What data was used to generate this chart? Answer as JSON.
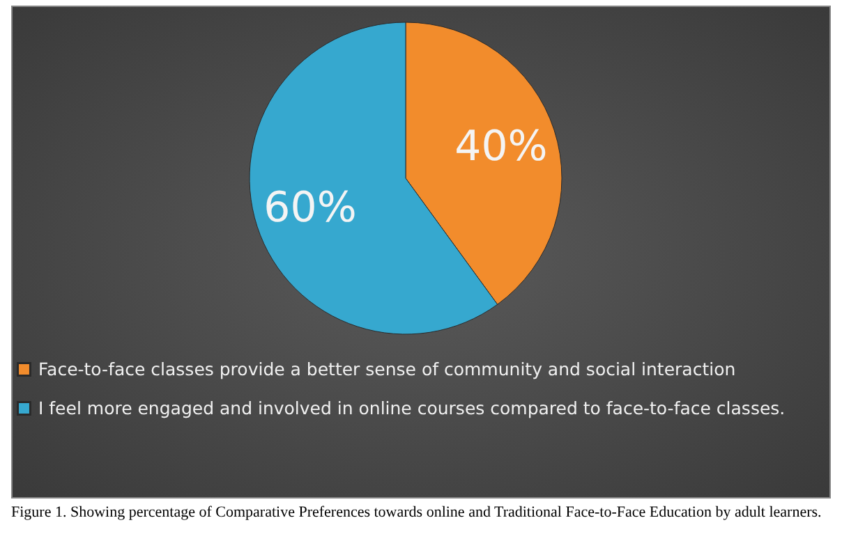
{
  "chart_data": {
    "type": "pie",
    "categories": [
      "Face-to-face classes provide a better sense of community and social interaction",
      "I feel more engaged and involved in online courses compared to face-to-face classes."
    ],
    "values": [
      40,
      60
    ],
    "colors": [
      "#f28c2c",
      "#36a8cf"
    ],
    "value_labels": [
      "40%",
      "60%"
    ],
    "legend": "bottom",
    "annotations": [
      "Figure 1. Showing percentage of Comparative Preferences towards online and Traditional Face-to-Face Education by adult learners."
    ]
  }
}
